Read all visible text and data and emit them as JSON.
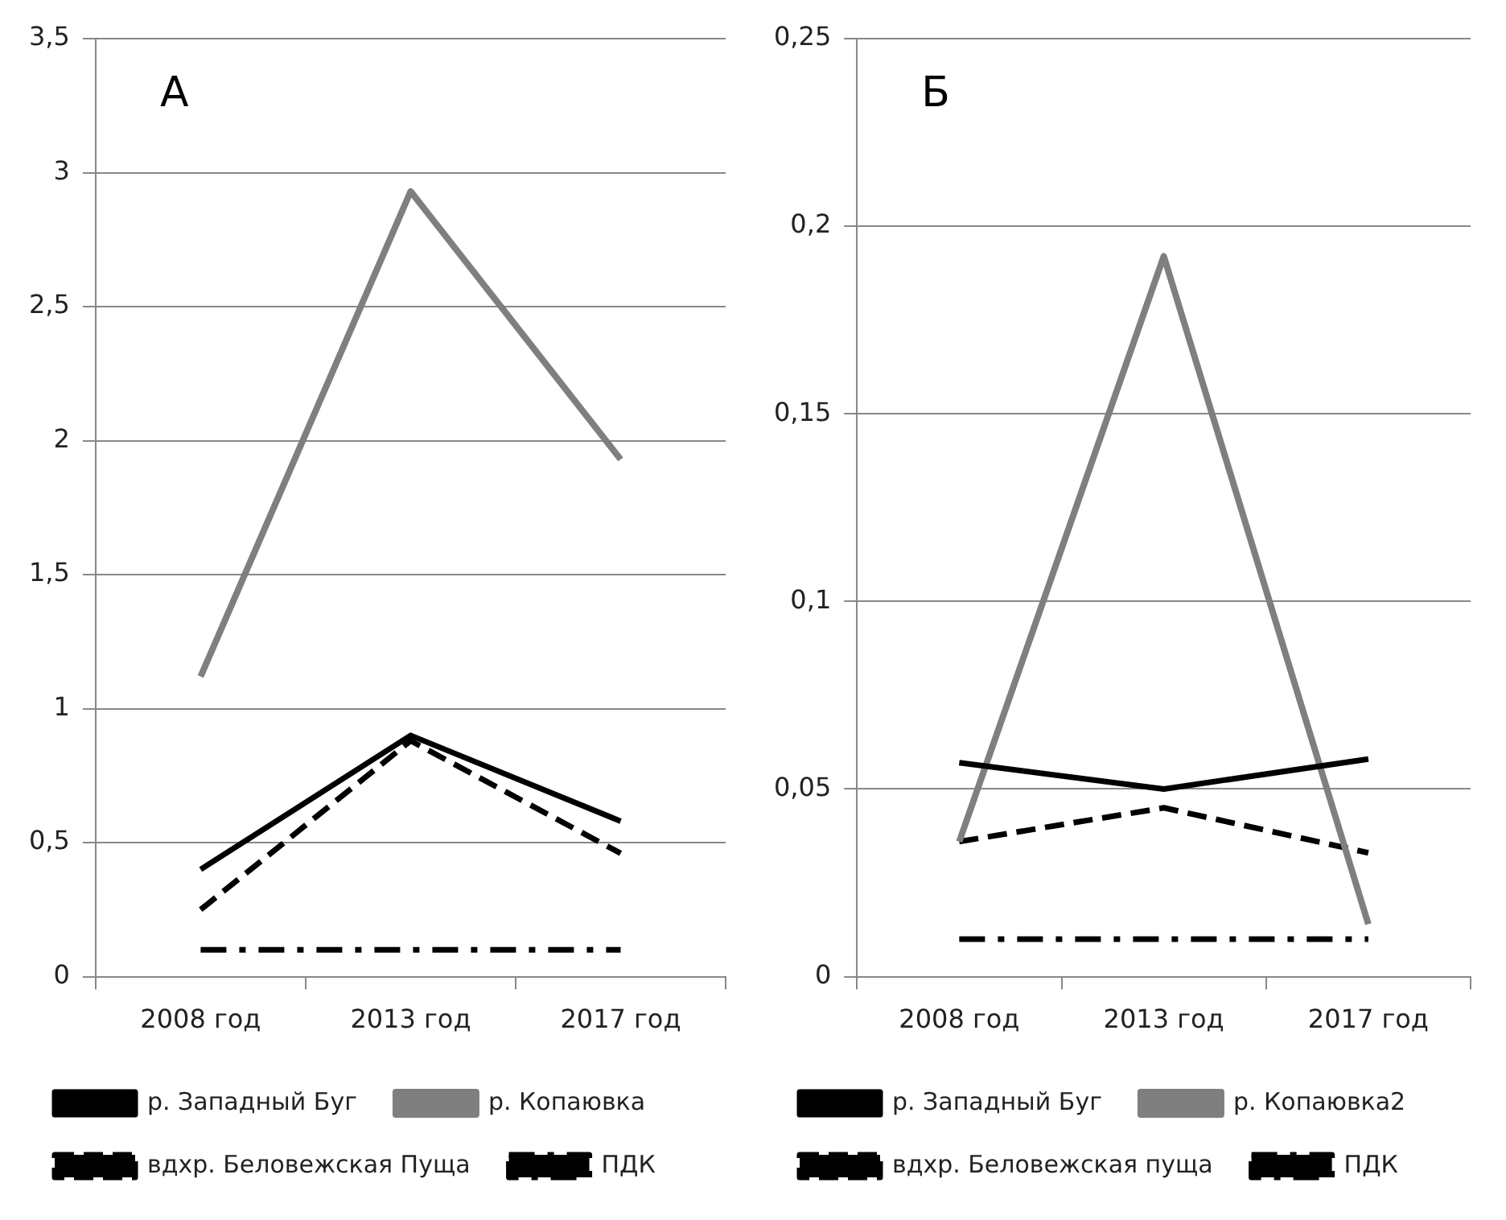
{
  "chart_data": [
    {
      "type": "line",
      "annotations": [
        "А"
      ],
      "categories": [
        "2008 год",
        "2013 год",
        "2017 год"
      ],
      "series": [
        {
          "name": "р. Западный Буг",
          "color": "#000000",
          "line_style": "solid",
          "values": [
            0.4,
            0.9,
            0.58
          ]
        },
        {
          "name": "р. Копаювка",
          "color": "#7f7f7f",
          "line_style": "solid",
          "values": [
            1.12,
            2.93,
            1.93
          ]
        },
        {
          "name": "вдхр. Беловежская Пуща",
          "color": "#000000",
          "line_style": "dashed",
          "values": [
            0.25,
            0.88,
            0.46
          ]
        },
        {
          "name": "ПДК",
          "color": "#000000",
          "line_style": "dashdot",
          "values": [
            0.1,
            0.1,
            0.1
          ]
        }
      ],
      "ylim": [
        0,
        3.5
      ],
      "yticks": [
        0,
        {
          "value": 0.5,
          "label": "0,5"
        },
        1,
        {
          "value": 1.5,
          "label": "1,5"
        },
        2,
        {
          "value": 2.5,
          "label": "2,5"
        },
        3,
        {
          "value": 3.5,
          "label": "3,5"
        }
      ],
      "grid": "y",
      "legend": "bottom",
      "marker": "none"
    },
    {
      "type": "line",
      "annotations": [
        "Б"
      ],
      "categories": [
        "2008 год",
        "2013 год",
        "2017 год"
      ],
      "series": [
        {
          "name": "р. Западный Буг",
          "color": "#000000",
          "line_style": "solid",
          "values": [
            0.057,
            0.05,
            0.058
          ]
        },
        {
          "name": "р. Копаювка2",
          "color": "#7f7f7f",
          "line_style": "solid",
          "values": [
            0.036,
            0.192,
            0.014
          ]
        },
        {
          "name": "вдхр. Беловежская пуща",
          "color": "#000000",
          "line_style": "dashed",
          "values": [
            0.036,
            0.045,
            0.033
          ]
        },
        {
          "name": "ПДК",
          "color": "#000000",
          "line_style": "dashdot",
          "values": [
            0.01,
            0.01,
            0.01
          ]
        }
      ],
      "ylim": [
        0,
        0.25
      ],
      "yticks": [
        0,
        {
          "value": 0.05,
          "label": "0,05"
        },
        {
          "value": 0.1,
          "label": "0,1"
        },
        {
          "value": 0.15,
          "label": "0,15"
        },
        {
          "value": 0.2,
          "label": "0,2"
        },
        {
          "value": 0.25,
          "label": "0,25"
        }
      ],
      "grid": "y",
      "legend": "bottom",
      "marker": "none"
    }
  ]
}
